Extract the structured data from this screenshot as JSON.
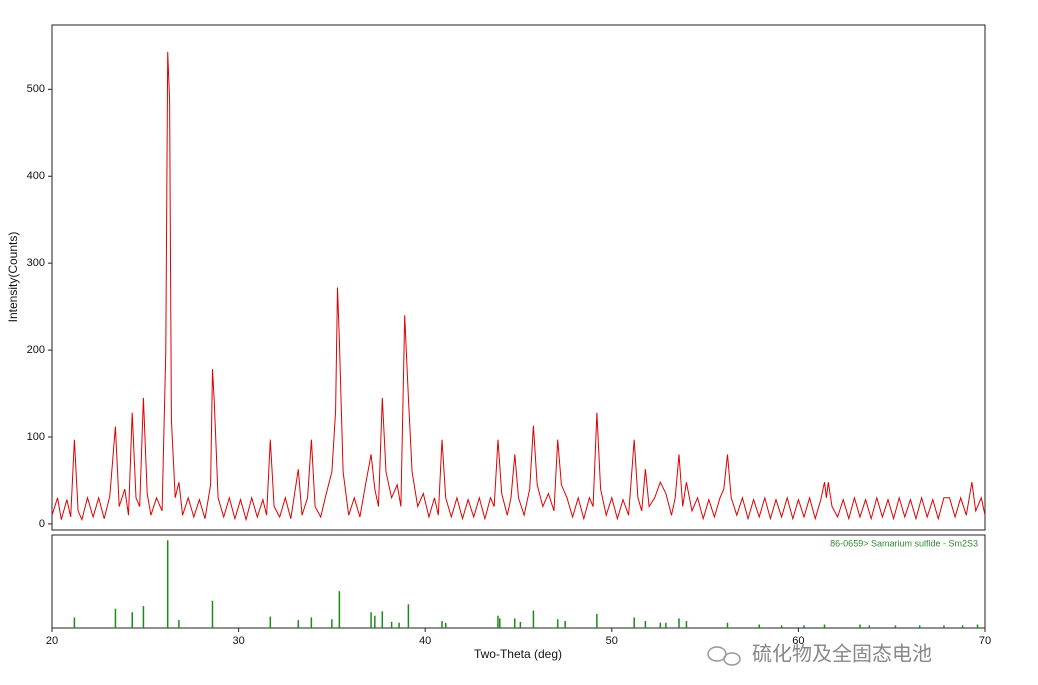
{
  "chart_data": [
    {
      "type": "line",
      "ylabel": "Intensity(Counts)",
      "xlim": [
        20,
        70
      ],
      "ylim": [
        -7,
        574
      ],
      "yticks": [
        0,
        100,
        200,
        300,
        400,
        500
      ],
      "series": [
        {
          "color": "#e00000",
          "x": [
            20.0,
            20.3,
            20.5,
            20.8,
            21.0,
            21.2,
            21.4,
            21.6,
            21.9,
            22.2,
            22.5,
            22.8,
            23.1,
            23.4,
            23.6,
            23.9,
            24.1,
            24.3,
            24.5,
            24.7,
            24.9,
            25.1,
            25.3,
            25.6,
            25.9,
            26.1,
            26.2,
            26.3,
            26.4,
            26.6,
            26.8,
            27.0,
            27.3,
            27.6,
            27.9,
            28.2,
            28.5,
            28.6,
            28.7,
            28.9,
            29.2,
            29.5,
            29.8,
            30.1,
            30.4,
            30.7,
            31.0,
            31.3,
            31.5,
            31.7,
            31.9,
            32.2,
            32.5,
            32.8,
            33.2,
            33.4,
            33.7,
            33.9,
            34.1,
            34.4,
            34.7,
            35.0,
            35.2,
            35.3,
            35.4,
            35.6,
            35.9,
            36.2,
            36.5,
            36.8,
            37.1,
            37.3,
            37.5,
            37.7,
            37.9,
            38.2,
            38.5,
            38.7,
            38.9,
            39.1,
            39.3,
            39.6,
            39.9,
            40.2,
            40.5,
            40.7,
            40.9,
            41.1,
            41.4,
            41.7,
            42.0,
            42.3,
            42.6,
            42.9,
            43.2,
            43.5,
            43.7,
            43.9,
            44.1,
            44.4,
            44.6,
            44.8,
            45.0,
            45.3,
            45.6,
            45.8,
            46.0,
            46.3,
            46.6,
            46.9,
            47.1,
            47.3,
            47.6,
            47.9,
            48.2,
            48.5,
            48.8,
            49.0,
            49.2,
            49.4,
            49.7,
            50.0,
            50.3,
            50.6,
            50.9,
            51.2,
            51.4,
            51.6,
            51.8,
            52.0,
            52.3,
            52.6,
            52.9,
            53.2,
            53.4,
            53.6,
            53.8,
            54.0,
            54.3,
            54.6,
            54.9,
            55.2,
            55.5,
            55.8,
            56.0,
            56.2,
            56.4,
            56.7,
            57.0,
            57.3,
            57.6,
            57.9,
            58.2,
            58.5,
            58.8,
            59.1,
            59.4,
            59.7,
            60.0,
            60.3,
            60.6,
            60.9,
            61.2,
            61.4,
            61.5,
            61.6,
            61.8,
            62.1,
            62.4,
            62.7,
            63.0,
            63.3,
            63.6,
            63.9,
            64.2,
            64.5,
            64.8,
            65.1,
            65.4,
            65.7,
            66.0,
            66.3,
            66.6,
            66.9,
            67.2,
            67.5,
            67.8,
            68.1,
            68.4,
            68.7,
            69.0,
            69.3,
            69.5,
            69.8,
            70.0
          ],
          "values": [
            10,
            30,
            5,
            28,
            8,
            97,
            15,
            5,
            30,
            8,
            30,
            6,
            32,
            112,
            20,
            40,
            10,
            128,
            30,
            20,
            145,
            35,
            10,
            30,
            15,
            200,
            543,
            488,
            120,
            30,
            48,
            10,
            30,
            8,
            28,
            6,
            45,
            178,
            140,
            30,
            8,
            30,
            6,
            28,
            5,
            30,
            8,
            28,
            10,
            97,
            20,
            8,
            30,
            6,
            63,
            10,
            30,
            97,
            20,
            8,
            35,
            60,
            130,
            272,
            210,
            60,
            10,
            30,
            8,
            45,
            80,
            40,
            20,
            145,
            60,
            30,
            45,
            20,
            240,
            145,
            60,
            20,
            35,
            8,
            30,
            10,
            97,
            30,
            8,
            30,
            6,
            28,
            8,
            30,
            6,
            30,
            20,
            97,
            35,
            10,
            30,
            80,
            30,
            10,
            40,
            113,
            45,
            20,
            35,
            15,
            97,
            45,
            30,
            8,
            30,
            6,
            30,
            20,
            128,
            40,
            10,
            30,
            6,
            28,
            10,
            97,
            30,
            15,
            63,
            20,
            30,
            48,
            35,
            10,
            30,
            80,
            20,
            48,
            15,
            30,
            6,
            28,
            8,
            30,
            40,
            80,
            30,
            10,
            30,
            6,
            28,
            8,
            30,
            6,
            28,
            8,
            30,
            6,
            28,
            8,
            30,
            6,
            28,
            48,
            30,
            48,
            20,
            8,
            28,
            6,
            30,
            8,
            28,
            6,
            30,
            8,
            28,
            6,
            30,
            8,
            28,
            6,
            30,
            8,
            28,
            6,
            30,
            30,
            8,
            30,
            10,
            48,
            15,
            30,
            10
          ]
        }
      ]
    },
    {
      "type": "stem",
      "xlabel": "Two-Theta (deg)",
      "xlim": [
        20,
        70
      ],
      "ylim": [
        0,
        106
      ],
      "xticks": [
        20,
        30,
        40,
        50,
        60,
        70
      ],
      "series": [
        {
          "name": "86-0659> Samarium sulfide - Sm2S3",
          "color": "#1a8a1a",
          "x": [
            21.2,
            23.4,
            24.3,
            24.9,
            26.2,
            26.8,
            28.6,
            31.7,
            33.2,
            33.9,
            35.0,
            35.4,
            37.1,
            37.3,
            37.7,
            38.2,
            38.6,
            39.1,
            40.9,
            41.1,
            43.9,
            44.0,
            44.8,
            45.1,
            45.8,
            47.1,
            47.5,
            49.2,
            51.2,
            51.8,
            52.6,
            52.9,
            53.6,
            54.0,
            56.2,
            57.9,
            59.1,
            60.3,
            61.4,
            63.3,
            63.8,
            65.2,
            66.5,
            67.8,
            68.8,
            69.6
          ],
          "values": [
            12,
            22,
            18,
            25,
            100,
            9,
            31,
            13,
            9,
            12,
            10,
            42,
            18,
            14,
            19,
            7,
            6,
            27,
            8,
            6,
            14,
            11,
            11,
            7,
            20,
            10,
            8,
            16,
            12,
            8,
            6,
            6,
            11,
            8,
            6,
            4,
            3,
            3,
            4,
            4,
            3,
            3,
            3,
            3,
            3,
            4
          ]
        }
      ]
    }
  ],
  "watermark": "硫化物及全固态电池"
}
